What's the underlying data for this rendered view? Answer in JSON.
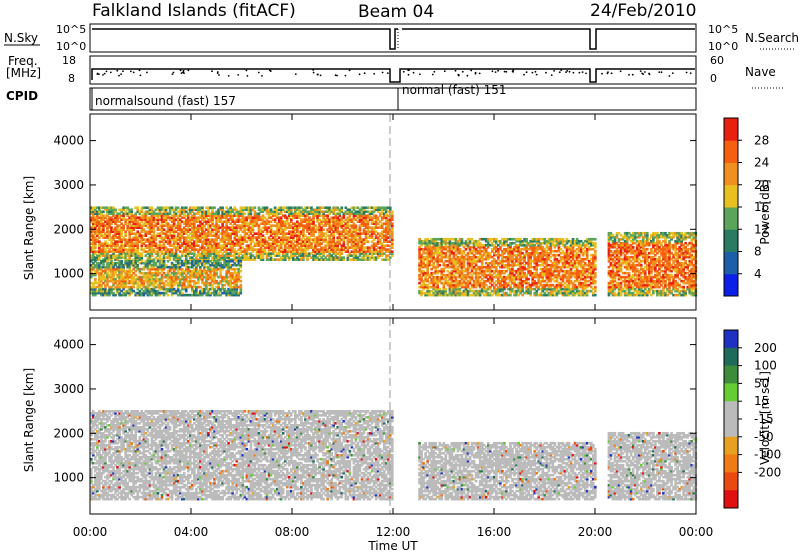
{
  "header": {
    "site": "Falkland Islands (fitACF)",
    "beam": "Beam 04",
    "date": "24/Feb/2010"
  },
  "top_panels": {
    "nsky_label": "N.Sky",
    "nsky_ticks": [
      "10^5",
      "10^0"
    ],
    "nsearch_label": "N.Search",
    "nsearch_ticks": [
      "10^5",
      "10^0"
    ],
    "freq_label_1": "Freq.",
    "freq_label_2": "[MHz]",
    "freq_ticks": [
      "18",
      "8"
    ],
    "nave_label": "Nave",
    "nave_ticks": [
      "60",
      "0"
    ],
    "cpid_label": "CPID",
    "cpid_segments": [
      "normalsound (fast) 157",
      "normal (fast) 151"
    ]
  },
  "colors": {
    "power_scale": [
      "#0b1fe6",
      "#1c5fa8",
      "#2b7a62",
      "#5aa55a",
      "#e8c020",
      "#f09020",
      "#f46010",
      "#e82010"
    ],
    "velocity_scale": [
      "#2030c0",
      "#1f6a5a",
      "#3c8c3c",
      "#66cc33",
      "#bbbbbb",
      "#bbbbbb",
      "#e8a020",
      "#f07a14",
      "#ea4a10",
      "#e01010"
    ]
  },
  "chart_data": [
    {
      "type": "heatmap",
      "title": "",
      "xlabel": "Time UT",
      "ylabel": "Slant Range [km]",
      "x_ticks": [
        "00:00",
        "04:00",
        "08:00",
        "12:00",
        "16:00",
        "20:00",
        "00:00"
      ],
      "y_ticks": [
        "1000",
        "2000",
        "3000",
        "4000"
      ],
      "ylim": [
        180,
        4600
      ],
      "colorbar": {
        "label": "Power [dB]",
        "ticks": [
          "4",
          "8",
          "12",
          "16",
          "20",
          "24",
          "28"
        ],
        "range": [
          0,
          32
        ]
      },
      "approximate_echo_regions": [
        {
          "t_start": 0.0,
          "t_end": 12.0,
          "range_min": 1300,
          "range_max": 2500,
          "power_db": 26
        },
        {
          "t_start": 0.0,
          "t_end": 6.0,
          "range_min": 500,
          "range_max": 1300,
          "power_db": 22
        },
        {
          "t_start": 13.0,
          "t_end": 20.0,
          "range_min": 500,
          "range_max": 1800,
          "power_db": 26
        },
        {
          "t_start": 20.5,
          "t_end": 24.0,
          "range_min": 500,
          "range_max": 1900,
          "power_db": 27
        }
      ]
    },
    {
      "type": "heatmap",
      "title": "",
      "xlabel": "Time UT",
      "ylabel": "Slant Range [km]",
      "x_ticks": [
        "00:00",
        "04:00",
        "08:00",
        "12:00",
        "16:00",
        "20:00",
        "00:00"
      ],
      "y_ticks": [
        "1000",
        "2000",
        "3000",
        "4000"
      ],
      "ylim": [
        180,
        4600
      ],
      "colorbar": {
        "label": "Velocity [m s-1]",
        "ticks": [
          "200",
          "100",
          "50",
          "15",
          "-15",
          "-50",
          "-100",
          "-200"
        ],
        "range": [
          -250,
          250
        ]
      },
      "approximate_echo_regions": [
        {
          "t_start": 0.0,
          "t_end": 12.0,
          "range_min": 500,
          "range_max": 2500,
          "velocity_ms": 0
        },
        {
          "t_start": 13.0,
          "t_end": 20.0,
          "range_min": 500,
          "range_max": 1800,
          "velocity_ms": 0
        },
        {
          "t_start": 20.5,
          "t_end": 24.0,
          "range_min": 500,
          "range_max": 2000,
          "velocity_ms": 0
        }
      ]
    }
  ],
  "time_axis_label": "Time UT"
}
